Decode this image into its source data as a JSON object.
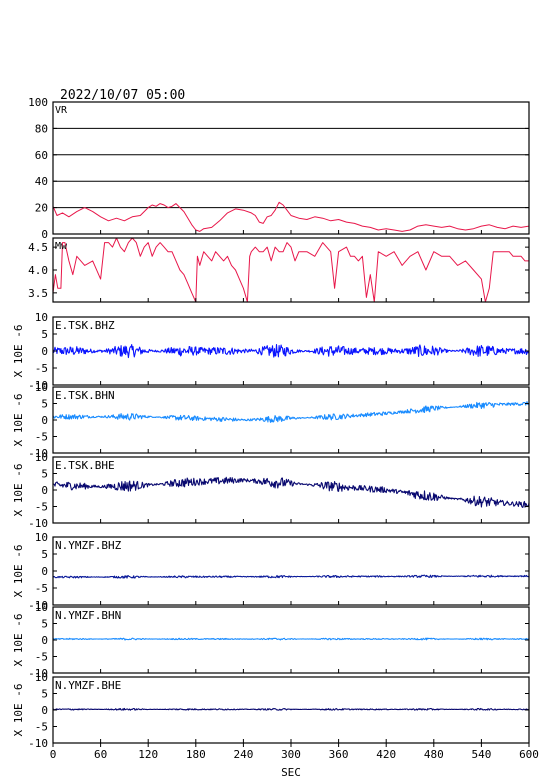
{
  "header": {
    "datetime": "2022/10/07 05:00"
  },
  "x_axis": {
    "label": "SEC",
    "ticks": [
      0,
      60,
      120,
      180,
      240,
      300,
      360,
      420,
      480,
      540,
      600
    ],
    "range": [
      0,
      600
    ]
  },
  "chart_data": [
    {
      "type": "line",
      "title": "VR",
      "ylim": [
        0,
        100
      ],
      "yticks": [
        0,
        20,
        40,
        60,
        80,
        100
      ],
      "grid": true,
      "color": "#e8174a",
      "series": [
        {
          "name": "VR",
          "x": [
            0,
            5,
            12,
            20,
            30,
            40,
            50,
            60,
            70,
            80,
            90,
            100,
            110,
            115,
            120,
            125,
            130,
            135,
            140,
            145,
            150,
            155,
            160,
            165,
            170,
            175,
            180,
            185,
            190,
            200,
            210,
            220,
            230,
            240,
            250,
            255,
            260,
            265,
            270,
            275,
            280,
            285,
            290,
            295,
            300,
            310,
            320,
            330,
            340,
            350,
            360,
            370,
            380,
            390,
            400,
            410,
            420,
            430,
            440,
            450,
            460,
            470,
            480,
            490,
            500,
            510,
            520,
            530,
            540,
            550,
            560,
            570,
            580,
            590,
            600
          ],
          "y": [
            21,
            14,
            16,
            13,
            17,
            20,
            17,
            13,
            10,
            12,
            10,
            13,
            14,
            17,
            20,
            22,
            21,
            23,
            22,
            20,
            21,
            23,
            20,
            17,
            12,
            7,
            3,
            2,
            4,
            5,
            10,
            16,
            19,
            18,
            16,
            14,
            9,
            8,
            13,
            14,
            18,
            24,
            22,
            18,
            14,
            12,
            11,
            13,
            12,
            10,
            11,
            9,
            8,
            6,
            5,
            3,
            4,
            3,
            2,
            3,
            6,
            7,
            6,
            5,
            6,
            4,
            3,
            4,
            6,
            7,
            5,
            4,
            6,
            5,
            6
          ]
        }
      ]
    },
    {
      "type": "line",
      "title": "Mw",
      "ylim": [
        3.3,
        4.7
      ],
      "yticks": [
        3.5,
        4.0,
        4.5
      ],
      "ytick_labels": [
        "3.5",
        "4.0",
        "4.5"
      ],
      "grid": false,
      "color": "#e8174a",
      "series": [
        {
          "name": "Mw",
          "x": [
            0,
            3,
            6,
            10,
            12,
            15,
            20,
            25,
            30,
            40,
            50,
            60,
            65,
            70,
            75,
            80,
            85,
            90,
            95,
            100,
            105,
            110,
            115,
            120,
            125,
            130,
            135,
            140,
            145,
            150,
            155,
            160,
            165,
            170,
            175,
            180,
            182,
            185,
            190,
            195,
            200,
            205,
            210,
            215,
            220,
            225,
            230,
            235,
            240,
            245,
            248,
            250,
            255,
            260,
            265,
            270,
            275,
            280,
            285,
            290,
            295,
            300,
            305,
            310,
            320,
            330,
            340,
            350,
            355,
            360,
            370,
            375,
            380,
            385,
            390,
            395,
            400,
            405,
            410,
            420,
            430,
            440,
            450,
            460,
            470,
            480,
            490,
            500,
            510,
            520,
            530,
            540,
            545,
            550,
            555,
            560,
            565,
            570,
            575,
            580,
            585,
            590,
            595,
            600
          ],
          "y": [
            3.5,
            3.9,
            3.6,
            3.6,
            4.6,
            4.6,
            4.2,
            3.9,
            4.3,
            4.1,
            4.2,
            3.8,
            4.6,
            4.6,
            4.5,
            4.7,
            4.5,
            4.4,
            4.6,
            4.7,
            4.6,
            4.3,
            4.5,
            4.6,
            4.3,
            4.5,
            4.6,
            4.5,
            4.4,
            4.4,
            4.2,
            4.0,
            3.9,
            3.7,
            3.5,
            3.3,
            4.3,
            4.1,
            4.4,
            4.3,
            4.2,
            4.4,
            4.3,
            4.2,
            4.3,
            4.1,
            4.0,
            3.8,
            3.6,
            3.3,
            4.3,
            4.4,
            4.5,
            4.4,
            4.4,
            4.5,
            4.2,
            4.5,
            4.4,
            4.4,
            4.6,
            4.5,
            4.2,
            4.4,
            4.4,
            4.3,
            4.6,
            4.4,
            3.6,
            4.4,
            4.5,
            4.3,
            4.3,
            4.2,
            4.3,
            3.4,
            3.9,
            3.3,
            4.4,
            4.3,
            4.4,
            4.1,
            4.3,
            4.4,
            4.0,
            4.4,
            4.3,
            4.3,
            4.1,
            4.2,
            4.0,
            3.8,
            3.3,
            3.6,
            4.4,
            4.4,
            4.4,
            4.4,
            4.4,
            4.3,
            4.3,
            4.3,
            4.2,
            4.2
          ]
        }
      ]
    },
    {
      "type": "line",
      "title": "E.TSK.BHZ",
      "ylabel": "X 10E -6",
      "ylim": [
        -10,
        10
      ],
      "yticks": [
        -10,
        -5,
        0,
        5,
        10
      ],
      "grid": false,
      "color": "#0a14ff",
      "series": [
        {
          "name": "E.TSK.BHZ",
          "trend_x": [
            0,
            600
          ],
          "trend_y": [
            0,
            0
          ],
          "amplitude": 2.0
        }
      ]
    },
    {
      "type": "line",
      "title": "E.TSK.BHN",
      "ylabel": "X 10E -6",
      "ylim": [
        -10,
        10
      ],
      "yticks": [
        -10,
        -5,
        0,
        5,
        10
      ],
      "grid": false,
      "color": "#1a8cff",
      "series": [
        {
          "name": "E.TSK.BHN",
          "trend_x": [
            0,
            120,
            240,
            360,
            420,
            480,
            540,
            600
          ],
          "trend_y": [
            1,
            1,
            0,
            1,
            2,
            3.5,
            4.5,
            5
          ],
          "amplitude": 1.1
        }
      ]
    },
    {
      "type": "line",
      "title": "E.TSK.BHE",
      "ylabel": "X 10E -6",
      "ylim": [
        -10,
        10
      ],
      "yticks": [
        -10,
        -5,
        0,
        5,
        10
      ],
      "grid": false,
      "color": "#0a0a70",
      "series": [
        {
          "name": "E.TSK.BHE",
          "trend_x": [
            0,
            60,
            120,
            180,
            240,
            300,
            360,
            420,
            480,
            540,
            600
          ],
          "trend_y": [
            1.5,
            1,
            1.5,
            2.5,
            3,
            2,
            1,
            0,
            -2,
            -3.5,
            -4.5
          ],
          "amplitude": 1.8
        }
      ]
    },
    {
      "type": "line",
      "title": "N.YMZF.BHZ",
      "ylabel": "X 10E -6",
      "ylim": [
        -10,
        10
      ],
      "yticks": [
        -10,
        -5,
        0,
        5,
        10
      ],
      "grid": false,
      "color": "#0a1a9a",
      "series": [
        {
          "name": "N.YMZF.BHZ",
          "trend_x": [
            0,
            600
          ],
          "trend_y": [
            -1.8,
            -1.5
          ],
          "amplitude": 0.4
        }
      ]
    },
    {
      "type": "line",
      "title": "N.YMZF.BHN",
      "ylabel": "X 10E -6",
      "ylim": [
        -10,
        10
      ],
      "yticks": [
        -10,
        -5,
        0,
        5,
        10
      ],
      "grid": false,
      "color": "#1a8cff",
      "series": [
        {
          "name": "N.YMZF.BHN",
          "trend_x": [
            0,
            600
          ],
          "trend_y": [
            0.3,
            0.3
          ],
          "amplitude": 0.3
        }
      ]
    },
    {
      "type": "line",
      "title": "N.YMZF.BHE",
      "ylabel": "X 10E -6",
      "ylim": [
        -10,
        10
      ],
      "yticks": [
        -10,
        -5,
        0,
        5,
        10
      ],
      "grid": false,
      "color": "#0a0a70",
      "series": [
        {
          "name": "N.YMZF.BHE",
          "trend_x": [
            0,
            600
          ],
          "trend_y": [
            0.2,
            0.2
          ],
          "amplitude": 0.3
        }
      ]
    }
  ]
}
